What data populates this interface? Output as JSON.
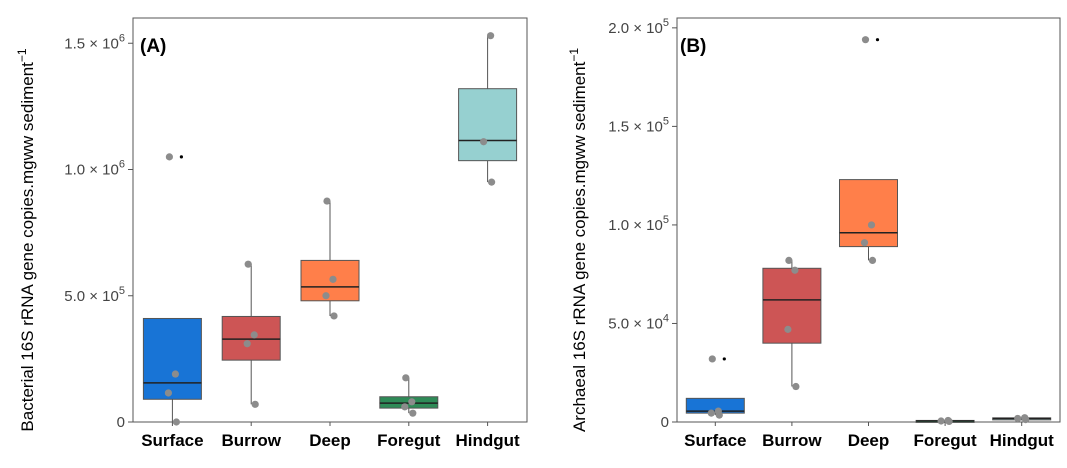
{
  "chart_data": [
    {
      "type": "box",
      "panel_label": "(A)",
      "ylabel": "Bacterial 16S rRNA gene copies.mgww sediment",
      "ylabel_superscript": "−1",
      "ylim": [
        0,
        1600000
      ],
      "yticks": [
        {
          "value": 0,
          "label": "0"
        },
        {
          "value": 500000,
          "label": "5.0 × 10",
          "exp": "5"
        },
        {
          "value": 1000000,
          "label": "1.0 × 10",
          "exp": "6"
        },
        {
          "value": 1500000,
          "label": "1.5 × 10",
          "exp": "6"
        }
      ],
      "categories": [
        "Surface",
        "Burrow",
        "Deep",
        "Foregut",
        "Hindgut"
      ],
      "colors": [
        "#1874d6",
        "#cd5555",
        "#ff7f4a",
        "#2e8b57",
        "#96d0d0"
      ],
      "boxes": [
        {
          "min": 0,
          "q1": 90000,
          "median": 155000,
          "q3": 410000,
          "max": 410000,
          "points": [
            0,
            115000,
            190000,
            1050000
          ],
          "outliers": [
            1050000
          ]
        },
        {
          "min": 70000,
          "q1": 245000,
          "median": 328000,
          "q3": 418000,
          "max": 625000,
          "points": [
            70000,
            310000,
            345000,
            625000
          ],
          "outliers": []
        },
        {
          "min": 420000,
          "q1": 480000,
          "median": 535000,
          "q3": 640000,
          "max": 875000,
          "points": [
            420000,
            500000,
            565000,
            875000
          ],
          "outliers": []
        },
        {
          "min": 35000,
          "q1": 55000,
          "median": 75000,
          "q3": 100000,
          "max": 175000,
          "points": [
            35000,
            60000,
            80000,
            175000
          ],
          "outliers": []
        },
        {
          "min": 950000,
          "q1": 1035000,
          "median": 1115000,
          "q3": 1320000,
          "max": 1530000,
          "points": [
            950000,
            1110000,
            1530000
          ],
          "outliers": []
        }
      ]
    },
    {
      "type": "box",
      "panel_label": "(B)",
      "ylabel": "Archaeal 16S rRNA gene copies.mgww sediment",
      "ylabel_superscript": "−1",
      "ylim": [
        0,
        205000
      ],
      "yticks": [
        {
          "value": 0,
          "label": "0"
        },
        {
          "value": 50000,
          "label": "5.0 × 10",
          "exp": "4"
        },
        {
          "value": 100000,
          "label": "1.0 × 10",
          "exp": "5"
        },
        {
          "value": 150000,
          "label": "1.5 × 10",
          "exp": "5"
        },
        {
          "value": 200000,
          "label": "2.0 × 10",
          "exp": "5"
        }
      ],
      "categories": [
        "Surface",
        "Burrow",
        "Deep",
        "Foregut",
        "Hindgut"
      ],
      "colors": [
        "#1874d6",
        "#cd5555",
        "#ff7f4a",
        "#2e8b57",
        "#96d0d0"
      ],
      "boxes": [
        {
          "min": 3500,
          "q1": 4500,
          "median": 5500,
          "q3": 12000,
          "max": 12000,
          "points": [
            3500,
            4500,
            5500,
            32000
          ],
          "outliers": [
            32000
          ]
        },
        {
          "min": 18000,
          "q1": 40000,
          "median": 62000,
          "q3": 78000,
          "max": 82000,
          "points": [
            18000,
            47000,
            77000,
            82000
          ],
          "outliers": []
        },
        {
          "min": 82000,
          "q1": 89000,
          "median": 96000,
          "q3": 123000,
          "max": 123000,
          "points": [
            82000,
            91000,
            100000,
            194000
          ],
          "outliers": [
            194000
          ]
        },
        {
          "min": 0,
          "q1": 300,
          "median": 500,
          "q3": 800,
          "max": 1000,
          "points": [
            300,
            500,
            800
          ],
          "outliers": []
        },
        {
          "min": 1000,
          "q1": 1500,
          "median": 1800,
          "q3": 2100,
          "max": 2500,
          "points": [
            1200,
            1800,
            2200
          ],
          "outliers": []
        }
      ]
    }
  ]
}
